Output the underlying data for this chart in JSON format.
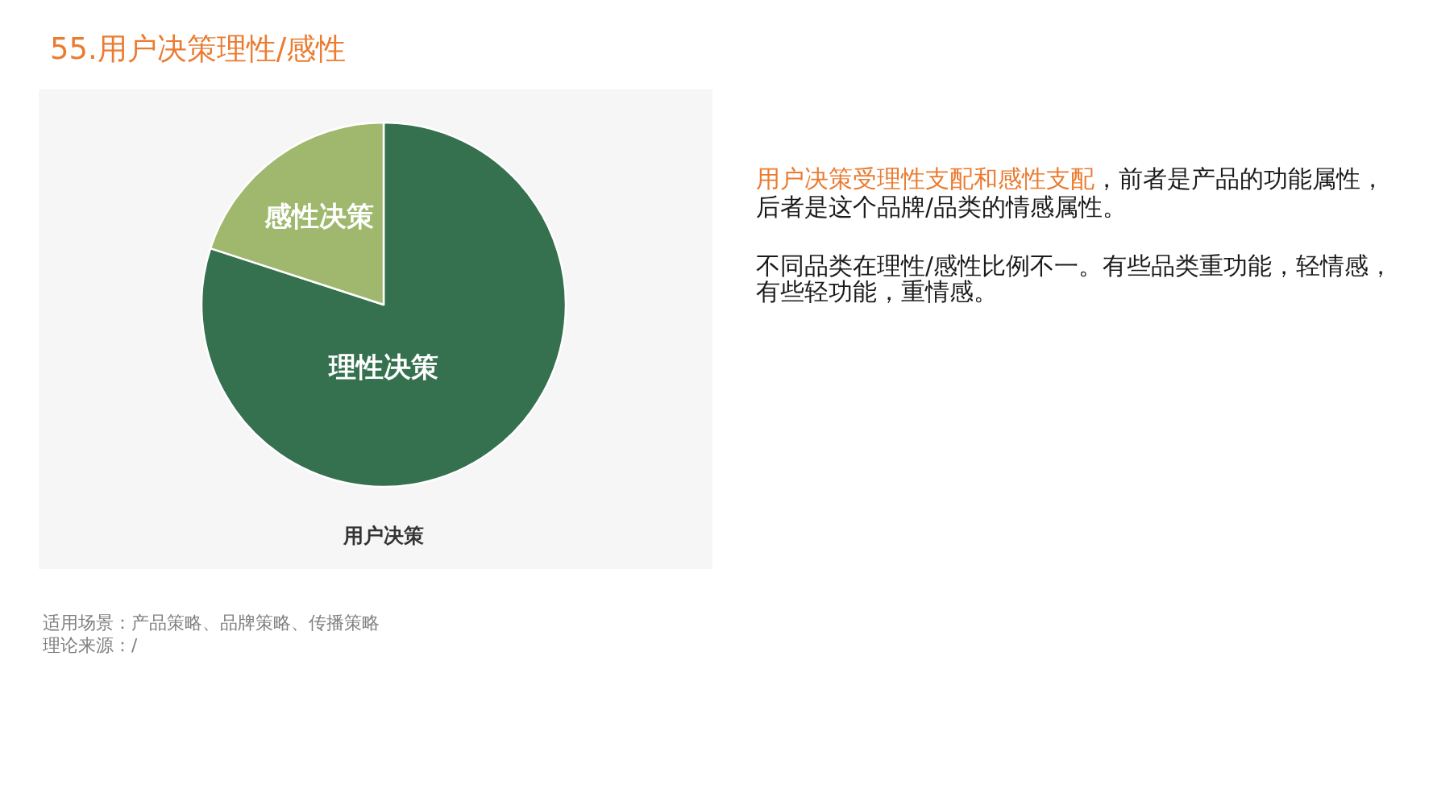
{
  "chart_data": {
    "type": "pie",
    "title": "55.用户决策理性/感性",
    "subtitle": "用户决策",
    "categories": [
      "理性决策",
      "感性决策"
    ],
    "values": [
      80,
      20
    ],
    "colors": [
      "#35704f",
      "#9fb86e"
    ],
    "annotations": [
      "用户决策受理性支配和感性支配",
      "，前者是产品的功能属性，",
      "后者是这个品牌/品类的情感属性。",
      "不同品类在理性/感性比例不一。有些品类重功能，轻情感，",
      "有些轻功能，重情感。",
      "适用场景：产品策略、品牌策略、传播策略",
      "理论来源：/"
    ]
  }
}
